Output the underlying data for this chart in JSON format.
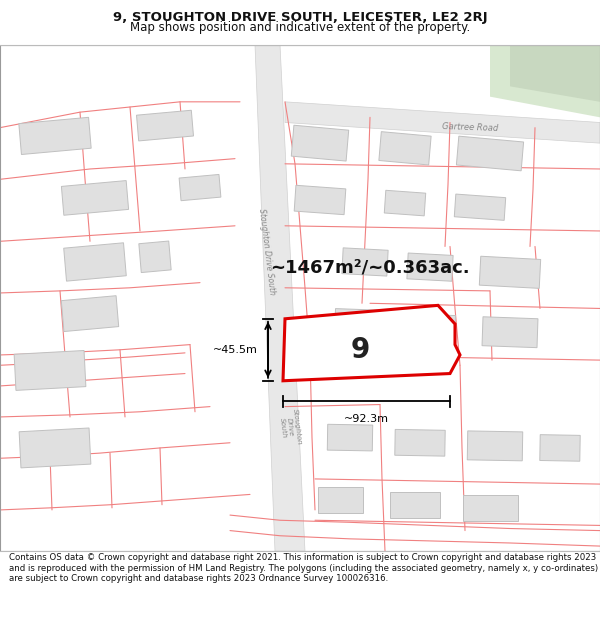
{
  "title_line1": "9, STOUGHTON DRIVE SOUTH, LEICESTER, LE2 2RJ",
  "title_line2": "Map shows position and indicative extent of the property.",
  "footer_text": "Contains OS data © Crown copyright and database right 2021. This information is subject to Crown copyright and database rights 2023 and is reproduced with the permission of HM Land Registry. The polygons (including the associated geometry, namely x, y co-ordinates) are subject to Crown copyright and database rights 2023 Ordnance Survey 100026316.",
  "area_label": "~1467m²/~0.363ac.",
  "number_label": "9",
  "dim_width": "~92.3m",
  "dim_height": "~45.5m",
  "map_bg": "#ffffff",
  "road_fill": "#e8e8e8",
  "road_edge": "#d0d0d0",
  "boundary_color": "#f08080",
  "building_fill": "#e0e0e0",
  "building_edge": "#c0c0c0",
  "highlight_color": "#dd0000",
  "prop_fill": "#ffffff",
  "greenspace_fill": "#d8e8d0",
  "title_fontsize": 9.5,
  "subtitle_fontsize": 8.5,
  "footer_fontsize": 6.2,
  "label_color": "#888888",
  "road_label_color": "#888888"
}
